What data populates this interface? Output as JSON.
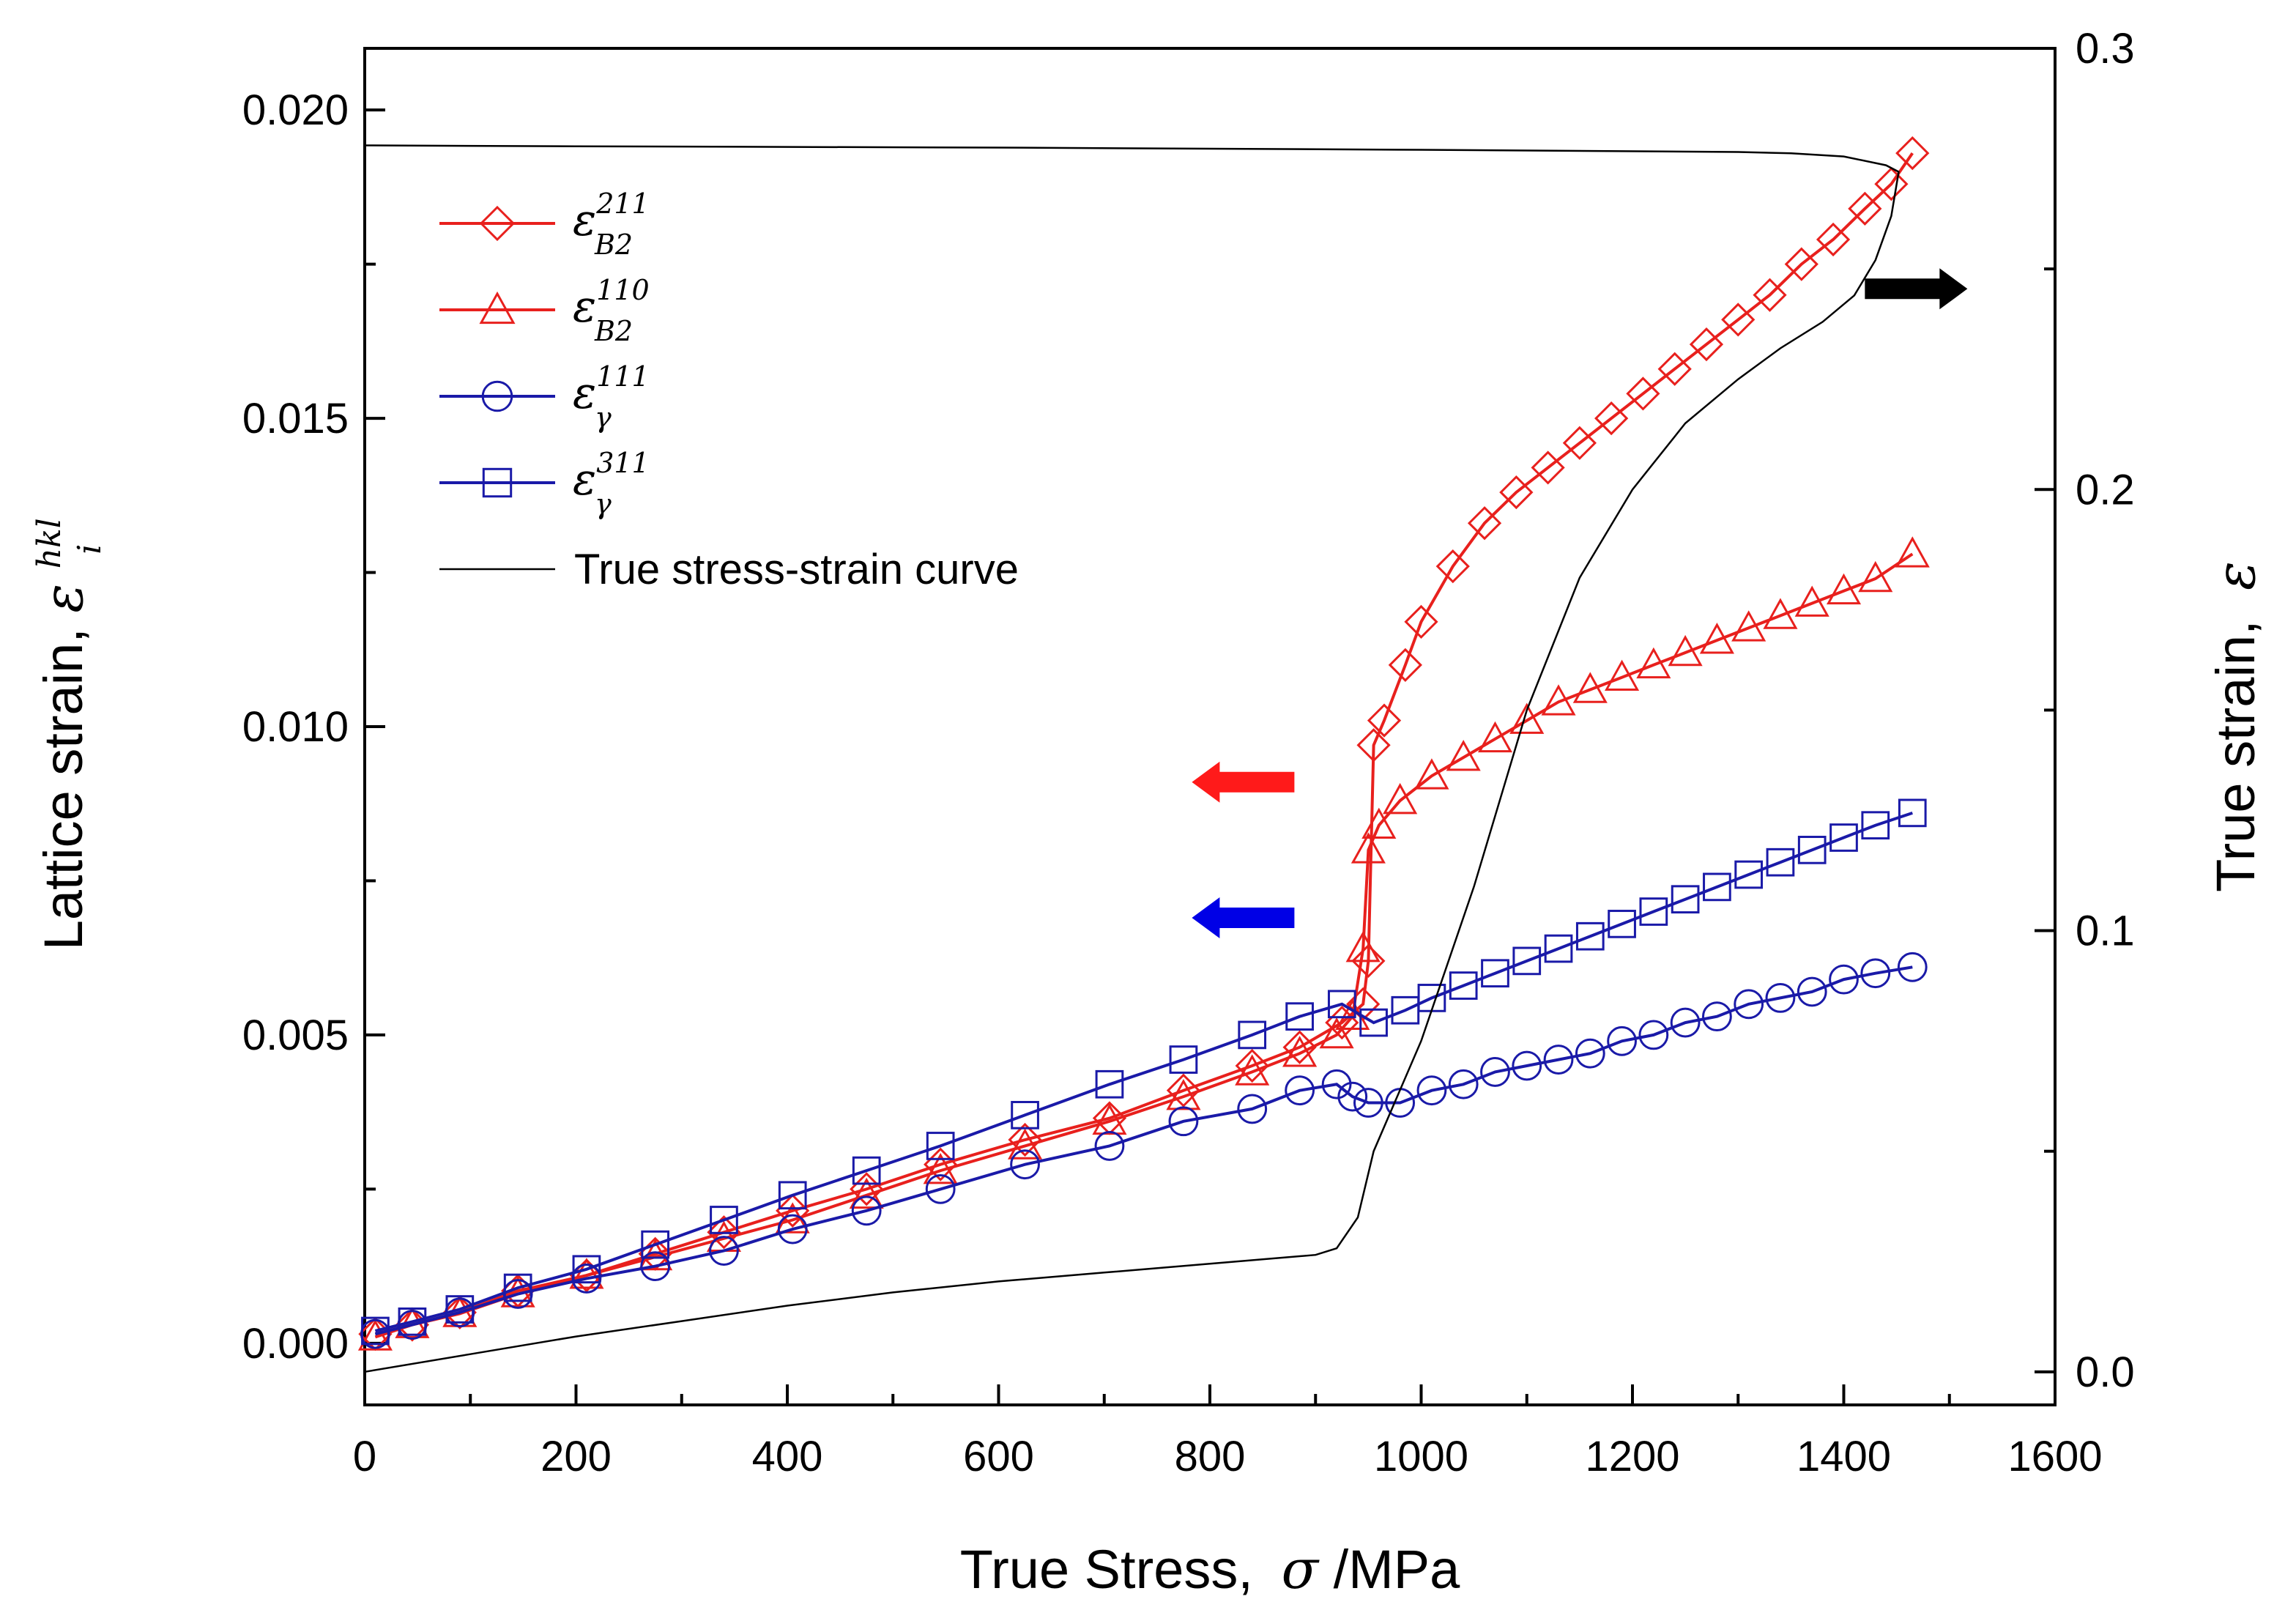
{
  "chart_data": {
    "type": "scatter",
    "title": "",
    "xlabel": "True Stress, σ /MPa",
    "xlabel_parts": {
      "text": "True Stress,",
      "symbol": "σ",
      "unit": "/MPa"
    },
    "ylabel": "Lattice strain, ε_i^hkl",
    "ylabel_parts": {
      "text": "Lattice strain,",
      "symbol": "ε",
      "sup": "hkl",
      "sub": "i"
    },
    "y2label": "True strain, ε",
    "y2label_parts": {
      "text": "True strain,",
      "symbol": "ε"
    },
    "xlim": [
      0,
      1600
    ],
    "ylim": [
      -0.001,
      0.021
    ],
    "y2lim": [
      -0.0075,
      0.3
    ],
    "xticks": [
      0,
      200,
      400,
      600,
      800,
      1000,
      1200,
      1400,
      1600
    ],
    "xtick_labels": [
      "0",
      "200",
      "400",
      "600",
      "800",
      "1000",
      "1200",
      "1400",
      "1600"
    ],
    "yticks": [
      0.0,
      0.005,
      0.01,
      0.015,
      0.02
    ],
    "ytick_labels": [
      "0.000",
      "0.005",
      "0.010",
      "0.015",
      "0.020"
    ],
    "y2ticks": [
      0.0,
      0.1,
      0.2,
      0.3
    ],
    "y2tick_labels": [
      "0.0",
      "0.1",
      "0.2",
      "0.3"
    ],
    "grid": false,
    "legend_position": "top-left",
    "colors": {
      "red": "#e8201d",
      "blue": "#1a1aa8",
      "black": "#000000"
    },
    "series": [
      {
        "name": "ε_B2^211",
        "sym": "ε",
        "sup": "211",
        "sub": "B2",
        "marker": "diamond",
        "color": "#e8201d",
        "axis": "left",
        "points": [
          [
            10,
            0.00015
          ],
          [
            45,
            0.0003
          ],
          [
            90,
            0.0005
          ],
          [
            145,
            0.00085
          ],
          [
            210,
            0.0011
          ],
          [
            275,
            0.00145
          ],
          [
            340,
            0.0018
          ],
          [
            405,
            0.00215
          ],
          [
            475,
            0.0025
          ],
          [
            545,
            0.0029
          ],
          [
            625,
            0.0033
          ],
          [
            705,
            0.00365
          ],
          [
            775,
            0.0041
          ],
          [
            840,
            0.0045
          ],
          [
            885,
            0.0048
          ],
          [
            925,
            0.0052
          ],
          [
            945,
            0.0055
          ],
          [
            950,
            0.0062
          ],
          [
            955,
            0.0097
          ],
          [
            965,
            0.0101
          ],
          [
            985,
            0.011
          ],
          [
            1000,
            0.0117
          ],
          [
            1030,
            0.0126
          ],
          [
            1060,
            0.0133
          ],
          [
            1090,
            0.0138
          ],
          [
            1120,
            0.0142
          ],
          [
            1150,
            0.0146
          ],
          [
            1180,
            0.015
          ],
          [
            1210,
            0.0154
          ],
          [
            1240,
            0.0158
          ],
          [
            1270,
            0.0162
          ],
          [
            1300,
            0.0166
          ],
          [
            1330,
            0.017
          ],
          [
            1360,
            0.0175
          ],
          [
            1390,
            0.0179
          ],
          [
            1420,
            0.0184
          ],
          [
            1445,
            0.0188
          ],
          [
            1465,
            0.0193
          ]
        ]
      },
      {
        "name": "ε_B2^110",
        "sym": "ε",
        "sup": "110",
        "sub": "B2",
        "marker": "triangle",
        "color": "#e8201d",
        "axis": "left",
        "points": [
          [
            10,
            0.0001
          ],
          [
            45,
            0.0003
          ],
          [
            90,
            0.00048
          ],
          [
            145,
            0.0008
          ],
          [
            210,
            0.0011
          ],
          [
            275,
            0.0014
          ],
          [
            340,
            0.0017
          ],
          [
            405,
            0.002
          ],
          [
            475,
            0.0024
          ],
          [
            545,
            0.0028
          ],
          [
            625,
            0.0032
          ],
          [
            705,
            0.0036
          ],
          [
            775,
            0.004
          ],
          [
            840,
            0.0044
          ],
          [
            885,
            0.0047
          ],
          [
            920,
            0.005
          ],
          [
            935,
            0.0053
          ],
          [
            945,
            0.0064
          ],
          [
            950,
            0.008
          ],
          [
            960,
            0.0084
          ],
          [
            980,
            0.0088
          ],
          [
            1010,
            0.0092
          ],
          [
            1040,
            0.0095
          ],
          [
            1070,
            0.0098
          ],
          [
            1100,
            0.0101
          ],
          [
            1130,
            0.0104
          ],
          [
            1160,
            0.0106
          ],
          [
            1190,
            0.0108
          ],
          [
            1220,
            0.011
          ],
          [
            1250,
            0.0112
          ],
          [
            1280,
            0.0114
          ],
          [
            1310,
            0.0116
          ],
          [
            1340,
            0.0118
          ],
          [
            1370,
            0.012
          ],
          [
            1400,
            0.0122
          ],
          [
            1430,
            0.0124
          ],
          [
            1465,
            0.0128
          ]
        ]
      },
      {
        "name": "ε_γ^111",
        "sym": "ε",
        "sup": "111",
        "sub": "γ",
        "marker": "circle",
        "color": "#1a1aa8",
        "axis": "left",
        "points": [
          [
            10,
            0.00015
          ],
          [
            45,
            0.0003
          ],
          [
            90,
            0.0005
          ],
          [
            145,
            0.0008
          ],
          [
            210,
            0.00105
          ],
          [
            275,
            0.00125
          ],
          [
            340,
            0.0015
          ],
          [
            405,
            0.00185
          ],
          [
            475,
            0.00215
          ],
          [
            545,
            0.0025
          ],
          [
            625,
            0.0029
          ],
          [
            705,
            0.0032
          ],
          [
            775,
            0.0036
          ],
          [
            840,
            0.0038
          ],
          [
            885,
            0.0041
          ],
          [
            920,
            0.0042
          ],
          [
            935,
            0.004
          ],
          [
            950,
            0.0039
          ],
          [
            980,
            0.0039
          ],
          [
            1010,
            0.0041
          ],
          [
            1040,
            0.0042
          ],
          [
            1070,
            0.0044
          ],
          [
            1100,
            0.0045
          ],
          [
            1130,
            0.0046
          ],
          [
            1160,
            0.0047
          ],
          [
            1190,
            0.0049
          ],
          [
            1220,
            0.005
          ],
          [
            1250,
            0.0052
          ],
          [
            1280,
            0.0053
          ],
          [
            1310,
            0.0055
          ],
          [
            1340,
            0.0056
          ],
          [
            1370,
            0.0057
          ],
          [
            1400,
            0.0059
          ],
          [
            1430,
            0.006
          ],
          [
            1465,
            0.0061
          ]
        ]
      },
      {
        "name": "ε_γ^311",
        "sym": "ε",
        "sup": "311",
        "sub": "γ",
        "marker": "square",
        "color": "#1a1aa8",
        "axis": "left",
        "points": [
          [
            10,
            0.0002
          ],
          [
            45,
            0.00035
          ],
          [
            90,
            0.00055
          ],
          [
            145,
            0.0009
          ],
          [
            210,
            0.0012
          ],
          [
            275,
            0.0016
          ],
          [
            340,
            0.002
          ],
          [
            405,
            0.0024
          ],
          [
            475,
            0.0028
          ],
          [
            545,
            0.0032
          ],
          [
            625,
            0.0037
          ],
          [
            705,
            0.0042
          ],
          [
            775,
            0.0046
          ],
          [
            840,
            0.005
          ],
          [
            885,
            0.0053
          ],
          [
            925,
            0.0055
          ],
          [
            955,
            0.0052
          ],
          [
            985,
            0.0054
          ],
          [
            1010,
            0.0056
          ],
          [
            1040,
            0.0058
          ],
          [
            1070,
            0.006
          ],
          [
            1100,
            0.0062
          ],
          [
            1130,
            0.0064
          ],
          [
            1160,
            0.0066
          ],
          [
            1190,
            0.0068
          ],
          [
            1220,
            0.007
          ],
          [
            1250,
            0.0072
          ],
          [
            1280,
            0.0074
          ],
          [
            1310,
            0.0076
          ],
          [
            1340,
            0.0078
          ],
          [
            1370,
            0.008
          ],
          [
            1400,
            0.0082
          ],
          [
            1430,
            0.0084
          ],
          [
            1465,
            0.0086
          ]
        ]
      },
      {
        "name": "True stress-strain curve",
        "marker": "none",
        "color": "#000000",
        "axis": "right",
        "points": [
          [
            0,
            0.0
          ],
          [
            100,
            0.004
          ],
          [
            200,
            0.008
          ],
          [
            300,
            0.0115
          ],
          [
            400,
            0.015
          ],
          [
            500,
            0.018
          ],
          [
            600,
            0.0205
          ],
          [
            700,
            0.0225
          ],
          [
            800,
            0.0245
          ],
          [
            900,
            0.0265
          ],
          [
            920,
            0.028
          ],
          [
            940,
            0.035
          ],
          [
            955,
            0.05
          ],
          [
            1000,
            0.075
          ],
          [
            1050,
            0.11
          ],
          [
            1100,
            0.15
          ],
          [
            1150,
            0.18
          ],
          [
            1200,
            0.2
          ],
          [
            1250,
            0.215
          ],
          [
            1300,
            0.225
          ],
          [
            1340,
            0.232
          ],
          [
            1380,
            0.238
          ],
          [
            1410,
            0.244
          ],
          [
            1430,
            0.252
          ],
          [
            1445,
            0.262
          ],
          [
            1452,
            0.272
          ],
          [
            1440,
            0.2735
          ],
          [
            1400,
            0.2755
          ],
          [
            1350,
            0.2762
          ],
          [
            1300,
            0.2765
          ],
          [
            1000,
            0.277
          ],
          [
            600,
            0.2775
          ],
          [
            200,
            0.2778
          ],
          [
            0,
            0.278
          ]
        ]
      }
    ],
    "annotations": [
      {
        "type": "arrow",
        "direction": "left",
        "color": "#ff1a1a",
        "meaning": "left axis",
        "at": [
          880,
          0.0091
        ]
      },
      {
        "type": "arrow",
        "direction": "left",
        "color": "#0000e6",
        "meaning": "left axis",
        "at": [
          880,
          0.0069
        ]
      },
      {
        "type": "arrow",
        "direction": "right",
        "color": "#000000",
        "meaning": "right axis",
        "at": [
          1420,
          0.0171
        ]
      }
    ]
  }
}
